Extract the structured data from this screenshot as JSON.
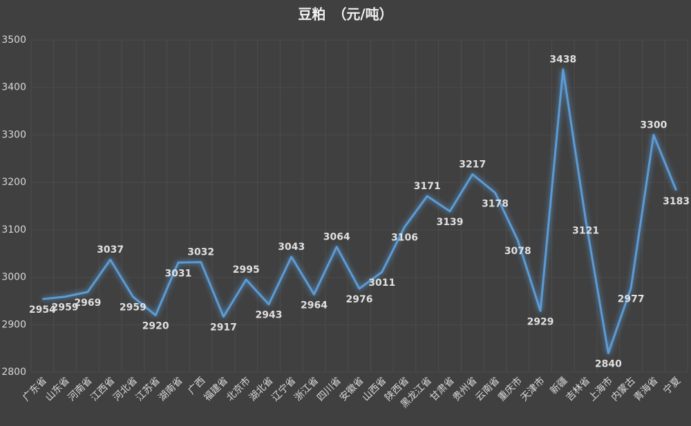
{
  "chart_data": {
    "type": "line",
    "title": "豆粕　（元/吨）",
    "categories": [
      "广东省",
      "山东省",
      "河南省",
      "江西省",
      "河北省",
      "江苏省",
      "湖南省",
      "广西",
      "福建省",
      "北京市",
      "湖北省",
      "辽宁省",
      "浙江省",
      "四川省",
      "安徽省",
      "山西省",
      "陕西省",
      "黑龙江省",
      "甘肃省",
      "贵州省",
      "云南省",
      "重庆市",
      "天津市",
      "新疆",
      "吉林省",
      "上海市",
      "内蒙古",
      "青海省",
      "宁夏"
    ],
    "values": [
      2954,
      2959,
      2969,
      3037,
      2959,
      2920,
      3031,
      3032,
      2917,
      2995,
      2943,
      3043,
      2964,
      3064,
      2976,
      3011,
      3106,
      3171,
      3139,
      3217,
      3178,
      3078,
      2929,
      3438,
      3121,
      2840,
      2977,
      3300,
      3183
    ],
    "color": "#5b9bd5",
    "ylim": [
      2800,
      3500
    ],
    "yticks": [
      2800,
      2900,
      3000,
      3100,
      3200,
      3300,
      3400,
      3500
    ]
  }
}
